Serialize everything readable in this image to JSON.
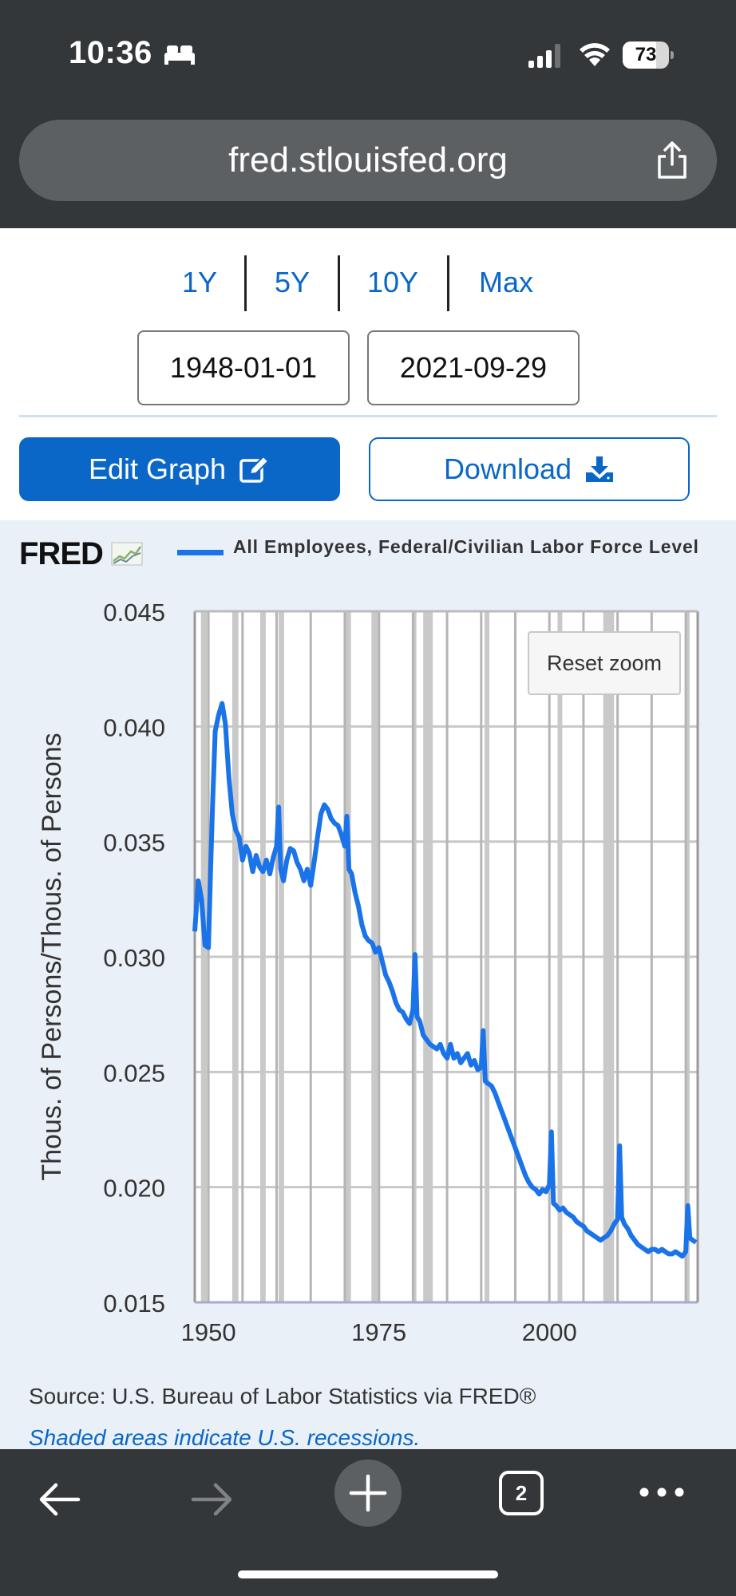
{
  "status_bar": {
    "time": "10:36",
    "battery": "73",
    "battery_level": 0.73
  },
  "browser": {
    "url": "fred.stlouisfed.org",
    "tab_count": "2"
  },
  "controls": {
    "ranges": [
      "1Y",
      "5Y",
      "10Y",
      "Max"
    ],
    "start_date": "1948-01-01",
    "end_date": "2021-09-29",
    "edit_label": "Edit Graph",
    "download_label": "Download"
  },
  "chart": {
    "logo": "FRED",
    "legend": "All Employees, Federal/Civilian Labor Force Level",
    "reset_zoom": "Reset zoom",
    "source": "Source: U.S. Bureau of Labor Statistics via FRED®",
    "shaded_note": "Shaded areas indicate U.S. recessions."
  },
  "chart_data": {
    "type": "line",
    "title": "",
    "ylabel": "Thous. of Persons/Thous. of Persons",
    "xlim": [
      1948,
      2021.75
    ],
    "ylim": [
      0.015,
      0.045
    ],
    "yticks": [
      "0.015",
      "0.020",
      "0.025",
      "0.030",
      "0.035",
      "0.040",
      "0.045"
    ],
    "xticks": [
      "1950",
      "1975",
      "2000"
    ],
    "grid": true,
    "series": [
      {
        "name": "All Employees, Federal/Civilian Labor Force Level",
        "color": "#1a73e8",
        "x": [
          1948.0,
          1948.5,
          1949.0,
          1949.5,
          1950.0,
          1950.3,
          1950.6,
          1951.0,
          1951.5,
          1952.0,
          1952.5,
          1953.0,
          1953.5,
          1954.0,
          1954.5,
          1955.0,
          1955.5,
          1956.0,
          1956.5,
          1957.0,
          1957.5,
          1958.0,
          1958.5,
          1959.0,
          1959.5,
          1960.0,
          1960.3,
          1960.6,
          1961.0,
          1961.5,
          1962.0,
          1962.5,
          1963.0,
          1963.5,
          1964.0,
          1964.5,
          1965.0,
          1965.5,
          1966.0,
          1966.5,
          1967.0,
          1967.5,
          1968.0,
          1968.5,
          1969.0,
          1969.5,
          1970.0,
          1970.3,
          1970.6,
          1971.0,
          1971.5,
          1972.0,
          1972.5,
          1973.0,
          1973.5,
          1974.0,
          1974.5,
          1975.0,
          1975.5,
          1976.0,
          1976.5,
          1977.0,
          1977.5,
          1978.0,
          1978.5,
          1979.0,
          1979.5,
          1980.0,
          1980.3,
          1980.6,
          1981.0,
          1981.5,
          1982.0,
          1982.5,
          1983.0,
          1983.5,
          1984.0,
          1984.5,
          1985.0,
          1985.5,
          1986.0,
          1986.5,
          1987.0,
          1987.5,
          1988.0,
          1988.5,
          1989.0,
          1989.5,
          1990.0,
          1990.3,
          1990.6,
          1991.0,
          1991.5,
          1992.0,
          1992.5,
          1993.0,
          1993.5,
          1994.0,
          1994.5,
          1995.0,
          1995.5,
          1996.0,
          1996.5,
          1997.0,
          1997.5,
          1998.0,
          1998.5,
          1999.0,
          1999.5,
          2000.0,
          2000.3,
          2000.6,
          2001.0,
          2001.5,
          2002.0,
          2002.5,
          2003.0,
          2003.5,
          2004.0,
          2004.5,
          2005.0,
          2005.5,
          2006.0,
          2006.5,
          2007.0,
          2007.5,
          2008.0,
          2008.5,
          2009.0,
          2009.5,
          2010.0,
          2010.3,
          2010.6,
          2011.0,
          2011.5,
          2012.0,
          2012.5,
          2013.0,
          2013.5,
          2014.0,
          2014.5,
          2015.0,
          2015.5,
          2016.0,
          2016.5,
          2017.0,
          2017.5,
          2018.0,
          2018.5,
          2019.0,
          2019.5,
          2020.0,
          2020.3,
          2020.6,
          2021.0,
          2021.5
        ],
        "y": [
          0.0311,
          0.0333,
          0.0325,
          0.0305,
          0.0304,
          0.0335,
          0.0365,
          0.0398,
          0.0405,
          0.041,
          0.0401,
          0.0378,
          0.0362,
          0.0355,
          0.0352,
          0.0342,
          0.0348,
          0.0345,
          0.0337,
          0.0344,
          0.0339,
          0.0337,
          0.0342,
          0.0336,
          0.0343,
          0.0348,
          0.0365,
          0.0338,
          0.0333,
          0.0342,
          0.0347,
          0.0346,
          0.0341,
          0.0338,
          0.0333,
          0.0338,
          0.0331,
          0.0341,
          0.0352,
          0.0362,
          0.0366,
          0.0364,
          0.036,
          0.0358,
          0.0357,
          0.0353,
          0.0348,
          0.0361,
          0.0338,
          0.0336,
          0.0328,
          0.0322,
          0.0314,
          0.0309,
          0.0307,
          0.0306,
          0.0302,
          0.0304,
          0.0298,
          0.0292,
          0.0289,
          0.0285,
          0.028,
          0.0277,
          0.0276,
          0.0273,
          0.0271,
          0.0277,
          0.0301,
          0.0274,
          0.0272,
          0.0266,
          0.0264,
          0.0262,
          0.0261,
          0.026,
          0.0262,
          0.0258,
          0.0256,
          0.0262,
          0.0256,
          0.0258,
          0.0254,
          0.0256,
          0.0258,
          0.0253,
          0.0255,
          0.0251,
          0.0252,
          0.0268,
          0.0246,
          0.0245,
          0.0244,
          0.0241,
          0.0237,
          0.0233,
          0.0229,
          0.0225,
          0.0221,
          0.0217,
          0.0213,
          0.0209,
          0.0205,
          0.0202,
          0.02,
          0.0199,
          0.0197,
          0.0199,
          0.0198,
          0.0201,
          0.0224,
          0.0193,
          0.0192,
          0.019,
          0.0191,
          0.0189,
          0.0188,
          0.0187,
          0.0185,
          0.0184,
          0.0183,
          0.0181,
          0.018,
          0.0179,
          0.0178,
          0.0177,
          0.0178,
          0.0179,
          0.0181,
          0.0184,
          0.0186,
          0.0218,
          0.0187,
          0.0184,
          0.0182,
          0.0179,
          0.0177,
          0.0175,
          0.0174,
          0.0173,
          0.0172,
          0.0173,
          0.0173,
          0.0172,
          0.0173,
          0.0172,
          0.0171,
          0.0171,
          0.0172,
          0.0171,
          0.017,
          0.0172,
          0.0192,
          0.0178,
          0.0177,
          0.0176
        ]
      }
    ],
    "recessions": [
      [
        1948.9,
        1949.8
      ],
      [
        1953.5,
        1954.4
      ],
      [
        1957.6,
        1958.4
      ],
      [
        1960.3,
        1961.1
      ],
      [
        1969.9,
        1970.9
      ],
      [
        1973.9,
        1975.2
      ],
      [
        1980.0,
        1980.5
      ],
      [
        1981.5,
        1982.9
      ],
      [
        1990.5,
        1991.2
      ],
      [
        2001.2,
        2001.9
      ],
      [
        2007.9,
        2009.5
      ],
      [
        2020.1,
        2020.4
      ]
    ]
  }
}
